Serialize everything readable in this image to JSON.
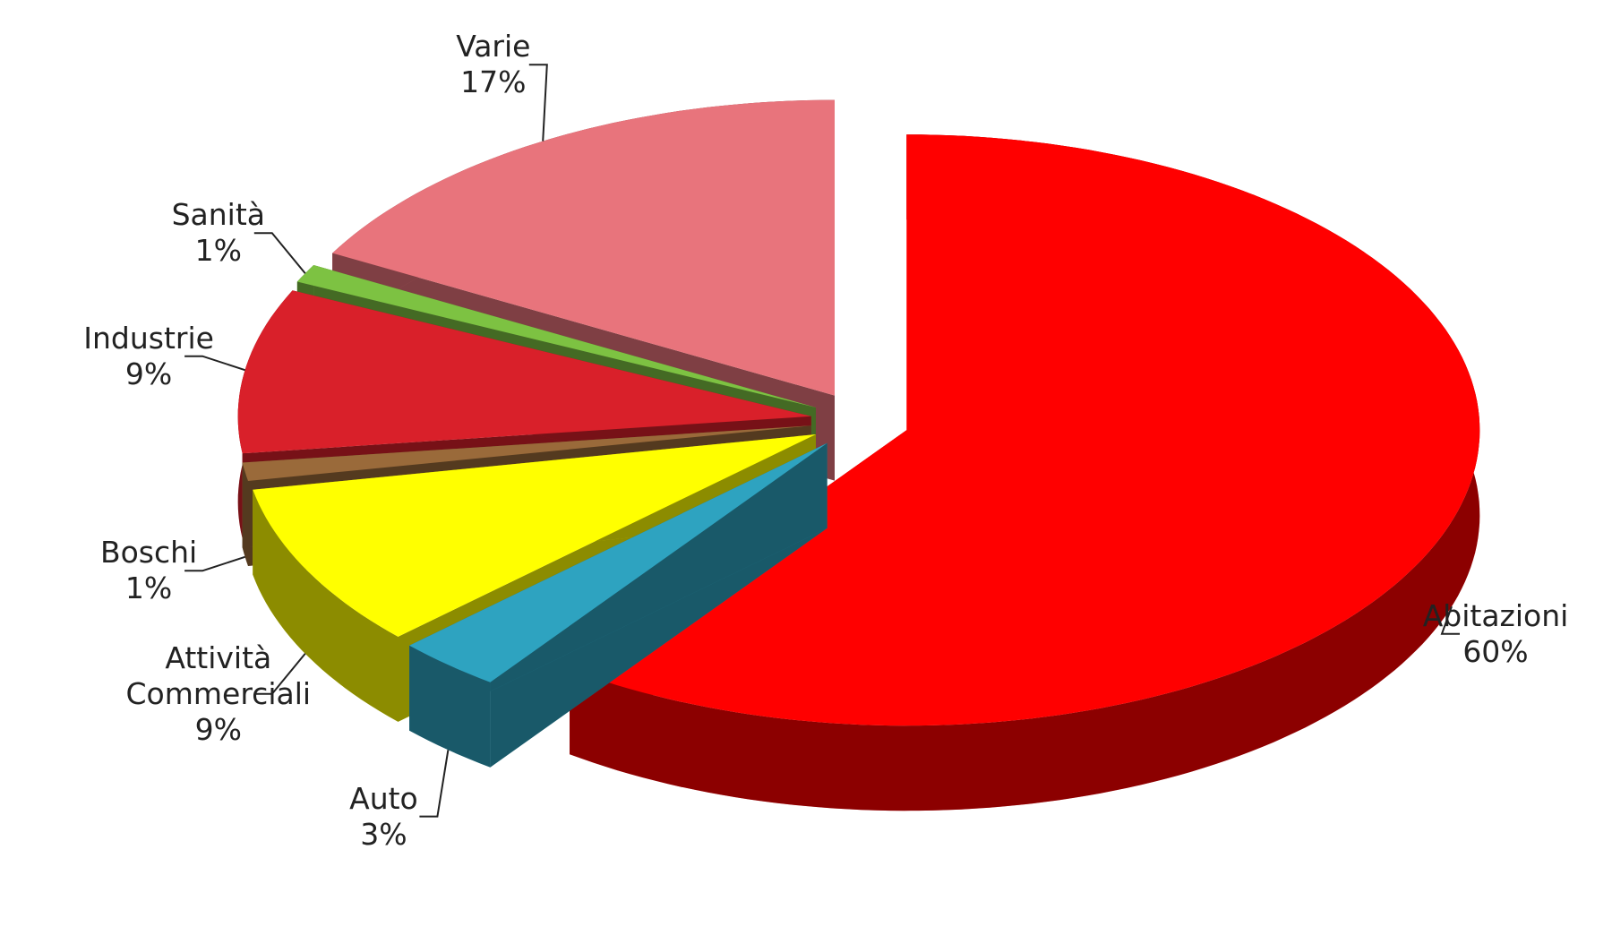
{
  "chart_data": {
    "type": "pie",
    "categories": [
      "Abitazioni",
      "Auto",
      "Attività Commerciali",
      "Boschi",
      "Industrie",
      "Sanità",
      "Varie"
    ],
    "values": [
      60,
      3,
      9,
      1,
      9,
      1,
      17
    ],
    "value_labels": [
      "60%",
      "3%",
      "9%",
      "1%",
      "9%",
      "1%",
      "17%"
    ],
    "colors": [
      "#ff0000",
      "#2ea3c0",
      "#ffff00",
      "#9a6a3a",
      "#d9202a",
      "#7dc242",
      "#e8747c"
    ]
  }
}
